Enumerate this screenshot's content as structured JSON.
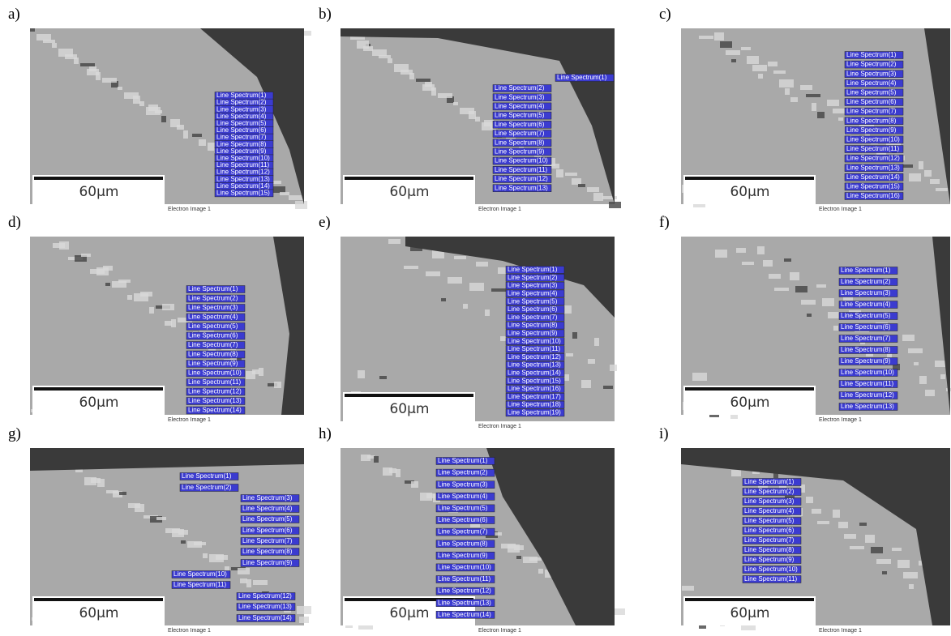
{
  "panels": [
    {
      "label": "a)",
      "scale_bar": "60µm",
      "caption": "Electron Image 1",
      "spectra": [
        "Line Spectrum(1)",
        "Line Spectrum(2)",
        "Line Spectrum(3)",
        "Line Spectrum(4)",
        "Line Spectrum(5)",
        "Line Spectrum(6)",
        "Line Spectrum(7)",
        "Line Spectrum(8)",
        "Line Spectrum(9)",
        "Line Spectrum(10)",
        "Line Spectrum(11)",
        "Line Spectrum(12)",
        "Line Spectrum(13)",
        "Line Spectrum(14)",
        "Line Spectrum(15)"
      ]
    },
    {
      "label": "b)",
      "scale_bar": "60µm",
      "caption": "Electron Image 1",
      "spectra": [
        "Line Spectrum(1)",
        "Line Spectrum(2)",
        "Line Spectrum(3)",
        "Line Spectrum(4)",
        "Line Spectrum(5)",
        "Line Spectrum(6)",
        "Line Spectrum(7)",
        "Line Spectrum(8)",
        "Line Spectrum(9)",
        "Line Spectrum(10)",
        "Line Spectrum(11)",
        "Line Spectrum(12)",
        "Line Spectrum(13)"
      ]
    },
    {
      "label": "c)",
      "scale_bar": "60µm",
      "caption": "Electron Image 1",
      "spectra": [
        "Line Spectrum(1)",
        "Line Spectrum(2)",
        "Line Spectrum(3)",
        "Line Spectrum(4)",
        "Line Spectrum(5)",
        "Line Spectrum(6)",
        "Line Spectrum(7)",
        "Line Spectrum(8)",
        "Line Spectrum(9)",
        "Line Spectrum(10)",
        "Line Spectrum(11)",
        "Line Spectrum(12)",
        "Line Spectrum(13)",
        "Line Spectrum(14)",
        "Line Spectrum(15)",
        "Line Spectrum(16)"
      ]
    },
    {
      "label": "d)",
      "scale_bar": "60µm",
      "caption": "Electron Image 1",
      "spectra": [
        "Line Spectrum(1)",
        "Line Spectrum(2)",
        "Line Spectrum(3)",
        "Line Spectrum(4)",
        "Line Spectrum(5)",
        "Line Spectrum(6)",
        "Line Spectrum(7)",
        "Line Spectrum(8)",
        "Line Spectrum(9)",
        "Line Spectrum(10)",
        "Line Spectrum(11)",
        "Line Spectrum(12)",
        "Line Spectrum(13)",
        "Line Spectrum(14)"
      ]
    },
    {
      "label": "e)",
      "scale_bar": "60µm",
      "caption": "Electron Image 1",
      "spectra": [
        "Line Spectrum(1)",
        "Line Spectrum(2)",
        "Line Spectrum(3)",
        "Line Spectrum(4)",
        "Line Spectrum(5)",
        "Line Spectrum(6)",
        "Line Spectrum(7)",
        "Line Spectrum(8)",
        "Line Spectrum(9)",
        "Line Spectrum(10)",
        "Line Spectrum(11)",
        "Line Spectrum(12)",
        "Line Spectrum(13)",
        "Line Spectrum(14)",
        "Line Spectrum(15)",
        "Line Spectrum(16)",
        "Line Spectrum(17)",
        "Line Spectrum(18)",
        "Line Spectrum(19)"
      ]
    },
    {
      "label": "f)",
      "scale_bar": "60µm",
      "caption": "Electron Image 1",
      "spectra": [
        "Line Spectrum(1)",
        "Line Spectrum(2)",
        "Line Spectrum(3)",
        "Line Spectrum(4)",
        "Line Spectrum(5)",
        "Line Spectrum(6)",
        "Line Spectrum(7)",
        "Line Spectrum(8)",
        "Line Spectrum(9)",
        "Line Spectrum(10)",
        "Line Spectrum(11)",
        "Line Spectrum(12)",
        "Line Spectrum(13)"
      ]
    },
    {
      "label": "g)",
      "scale_bar": "60µm",
      "caption": "Electron Image 1",
      "spectra": [
        "Line Spectrum(1)",
        "Line Spectrum(2)",
        "Line Spectrum(3)",
        "Line Spectrum(4)",
        "Line Spectrum(5)",
        "Line Spectrum(6)",
        "Line Spectrum(7)",
        "Line Spectrum(8)",
        "Line Spectrum(9)",
        "Line Spectrum(10)",
        "Line Spectrum(11)",
        "Line Spectrum(12)",
        "Line Spectrum(13)",
        "Line Spectrum(14)"
      ]
    },
    {
      "label": "h)",
      "scale_bar": "60µm",
      "caption": "Electron Image 1",
      "spectra": [
        "Line Spectrum(1)",
        "Line Spectrum(2)",
        "Line Spectrum(3)",
        "Line Spectrum(4)",
        "Line Spectrum(5)",
        "Line Spectrum(6)",
        "Line Spectrum(7)",
        "Line Spectrum(8)",
        "Line Spectrum(9)",
        "Line Spectrum(10)",
        "Line Spectrum(11)",
        "Line Spectrum(12)",
        "Line Spectrum(13)",
        "Line Spectrum(14)"
      ]
    },
    {
      "label": "i)",
      "scale_bar": "60µm",
      "caption": "Electron Image 1",
      "spectra": [
        "Line Spectrum(1)",
        "Line Spectrum(2)",
        "Line Spectrum(3)",
        "Line Spectrum(4)",
        "Line Spectrum(5)",
        "Line Spectrum(6)",
        "Line Spectrum(7)",
        "Line Spectrum(8)",
        "Line Spectrum(9)",
        "Line Spectrum(10)",
        "Line Spectrum(11)"
      ]
    }
  ]
}
